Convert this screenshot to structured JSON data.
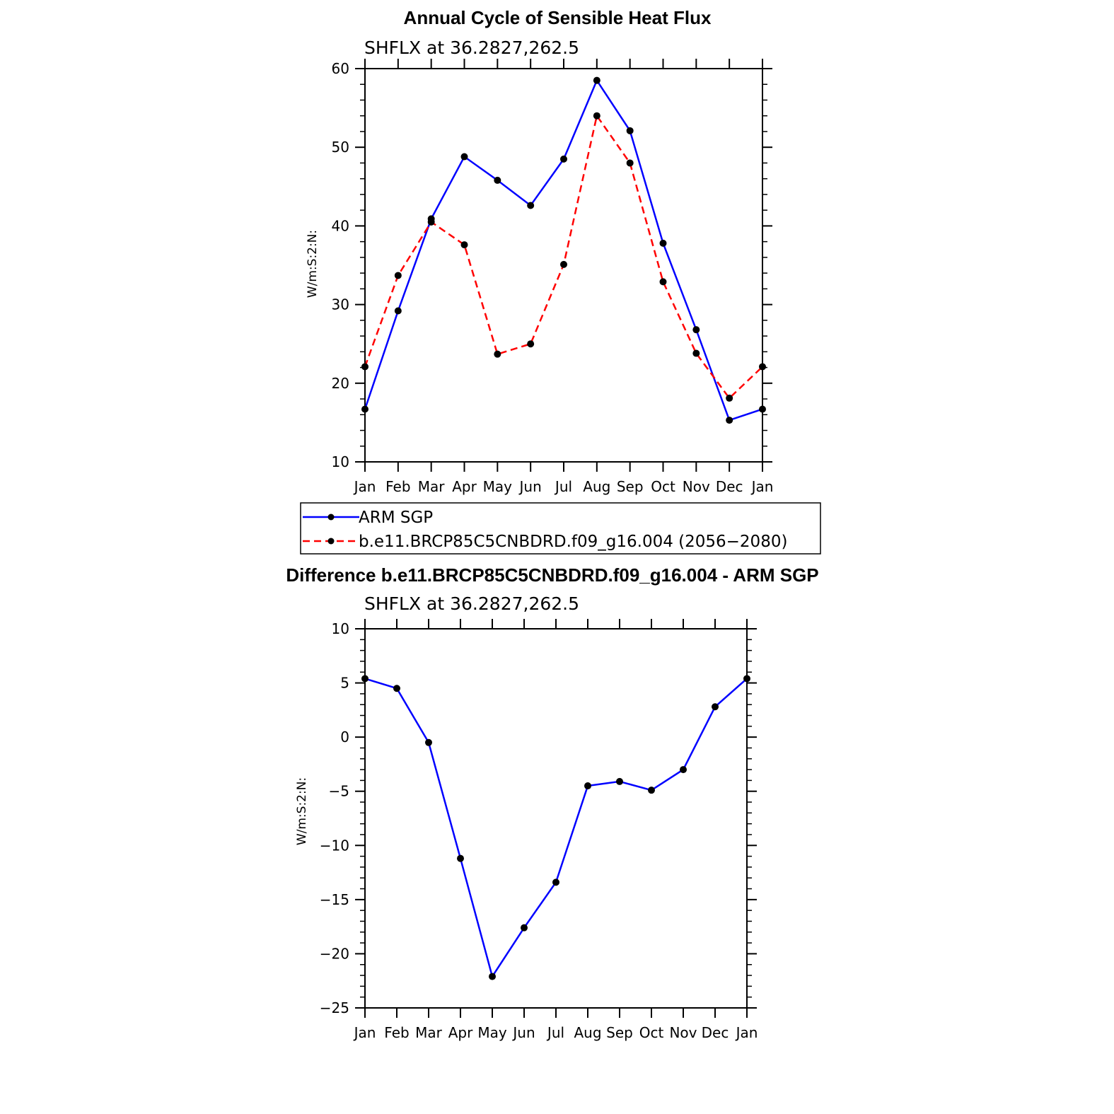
{
  "chart_data": [
    {
      "type": "line",
      "title": "Annual Cycle of Sensible Heat Flux",
      "subtitle": "SHFLX at 36.2827,262.5",
      "ylabel": "W/m:S:2:N:",
      "xlabel": "",
      "categories": [
        "Jan",
        "Feb",
        "Mar",
        "Apr",
        "May",
        "Jun",
        "Jul",
        "Aug",
        "Sep",
        "Oct",
        "Nov",
        "Dec",
        "Jan"
      ],
      "ylim": [
        10,
        60
      ],
      "yticks": [
        10,
        20,
        30,
        40,
        50,
        60
      ],
      "grid": false,
      "legend_position": "below",
      "series": [
        {
          "name": "ARM SGP",
          "color": "#0000ff",
          "dash": "solid",
          "values": [
            16.7,
            29.2,
            40.9,
            48.8,
            45.8,
            42.6,
            48.5,
            58.5,
            52.1,
            37.8,
            26.8,
            15.3,
            16.7
          ]
        },
        {
          "name": "b.e11.BRCP85C5CNBDRD.f09_g16.004 (2056−2080)",
          "color": "#ff0000",
          "dash": "dashed",
          "values": [
            22.1,
            33.7,
            40.5,
            37.6,
            23.7,
            25.0,
            35.1,
            54.0,
            48.0,
            32.9,
            23.8,
            18.1,
            22.1
          ]
        }
      ]
    },
    {
      "type": "line",
      "title": "Difference b.e11.BRCP85C5CNBDRD.f09_g16.004 - ARM SGP",
      "subtitle": "SHFLX at 36.2827,262.5",
      "ylabel": "W/m:S:2:N:",
      "xlabel": "",
      "categories": [
        "Jan",
        "Feb",
        "Mar",
        "Apr",
        "May",
        "Jun",
        "Jul",
        "Aug",
        "Sep",
        "Oct",
        "Nov",
        "Dec",
        "Jan"
      ],
      "ylim": [
        -25,
        10
      ],
      "yticks": [
        -25,
        -20,
        -15,
        -10,
        -5,
        0,
        5,
        10
      ],
      "ytick_labels": [
        "−25",
        "−20",
        "−15",
        "−10",
        "−5",
        "0",
        "5",
        "10"
      ],
      "grid": false,
      "series": [
        {
          "name": "",
          "color": "#0000ff",
          "dash": "solid",
          "values": [
            5.4,
            4.5,
            -0.5,
            -11.2,
            -22.1,
            -17.6,
            -13.4,
            -4.5,
            -4.1,
            -4.9,
            -3.0,
            2.8,
            5.4
          ]
        }
      ]
    }
  ]
}
